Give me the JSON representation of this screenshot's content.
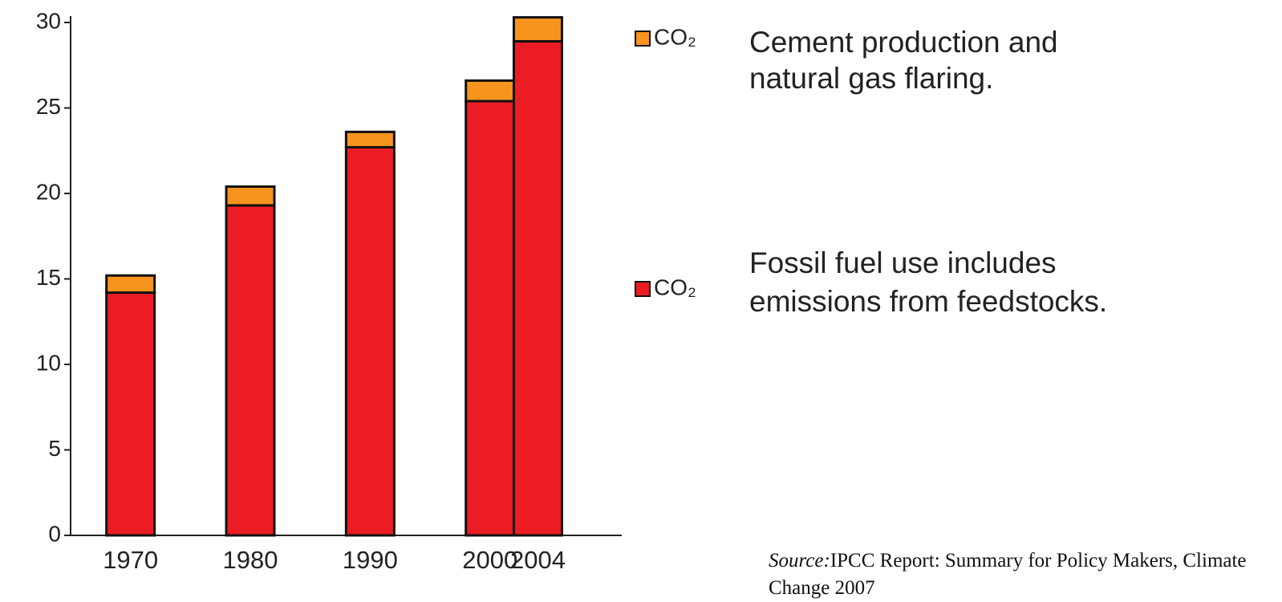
{
  "chart_data": {
    "type": "stacked_bar",
    "x": [
      1970,
      1980,
      1990,
      2000,
      2004
    ],
    "xlim": [
      1965,
      2011
    ],
    "ylim": [
      0,
      30
    ],
    "yticks": [
      0,
      5,
      10,
      15,
      20,
      25,
      30
    ],
    "series": [
      {
        "name": "CO₂",
        "color": "#ec1c24",
        "values": [
          14.2,
          19.3,
          22.7,
          25.4,
          28.9
        ],
        "description": [
          "Fossil fuel use includes",
          "emissions from feedstocks."
        ]
      },
      {
        "name": "CO₂",
        "color": "#f7941d",
        "values": [
          1.0,
          1.1,
          0.9,
          1.2,
          1.4
        ],
        "description": [
          "Cement production and",
          "natural gas flaring."
        ]
      }
    ],
    "source_label": "Source:",
    "source": "IPCC Report: Summary for Policy Makers, Climate Change 2007"
  }
}
